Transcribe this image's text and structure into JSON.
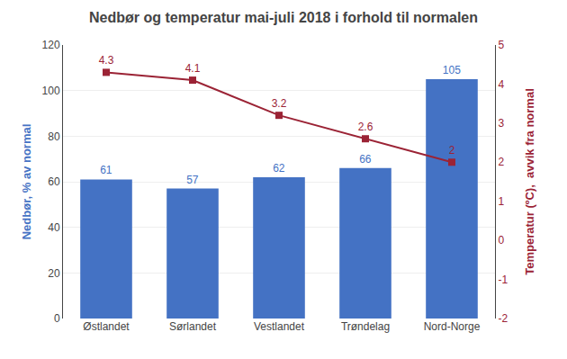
{
  "chart_data": {
    "type": "bar",
    "title": "Nedbør og temperatur mai-juli 2018 i forhold til normalen",
    "categories": [
      "Østlandet",
      "Sørlandet",
      "Vestlandet",
      "Trøndelag",
      "Nord-Norge"
    ],
    "series": [
      {
        "type": "bar",
        "color": "#4472C4",
        "values": [
          61,
          57,
          62,
          66,
          105
        ]
      },
      {
        "type": "line",
        "axis": "y2",
        "color": "#9B2335",
        "marker": "square",
        "values": [
          4.3,
          4.1,
          3.2,
          2.6,
          2
        ]
      }
    ],
    "ylabel": "Nedbør, % av normal",
    "y2label": "Temperatur (ºC),  avvik fra normal",
    "ylim": [
      0,
      120
    ],
    "yticks": [
      0,
      20,
      40,
      60,
      80,
      100,
      120
    ],
    "y2lim": [
      -2,
      5
    ],
    "y2ticks": [
      -2,
      -1,
      0,
      1,
      2,
      3,
      4,
      5
    ],
    "grid": true,
    "data_labels": true
  }
}
